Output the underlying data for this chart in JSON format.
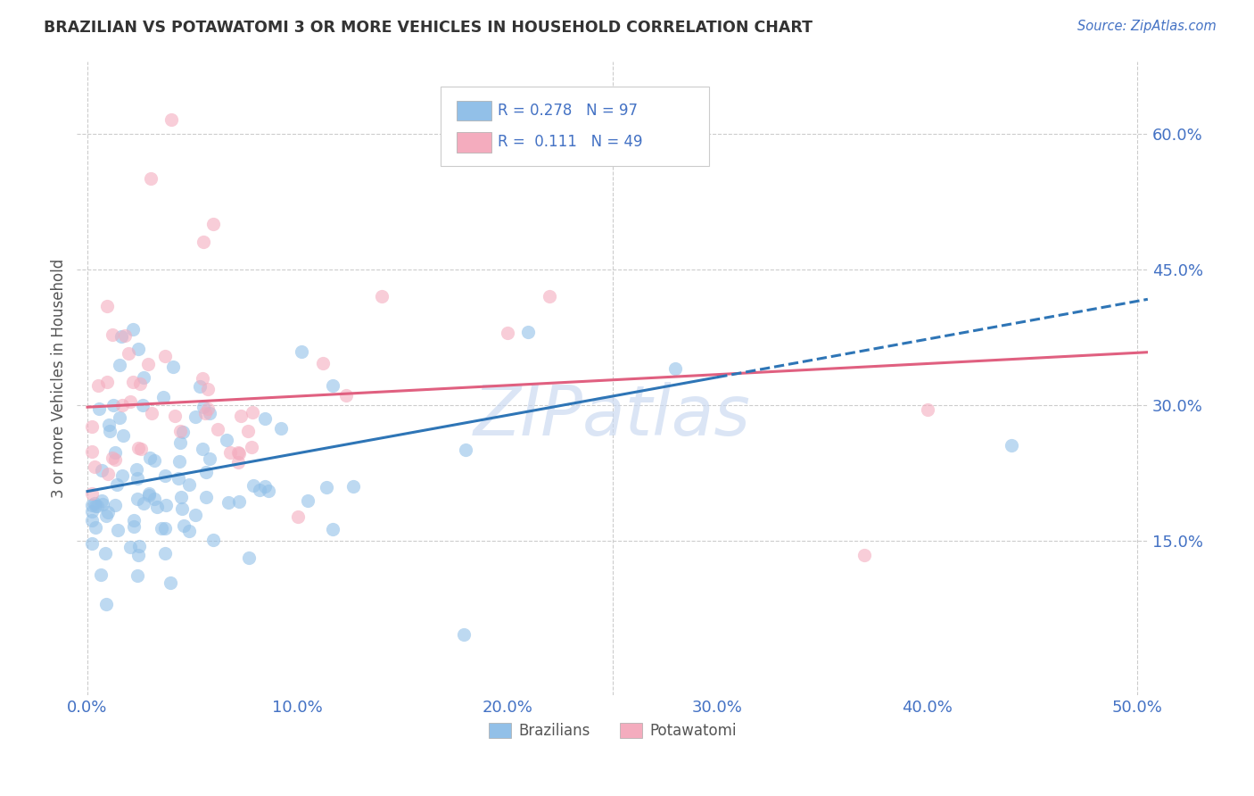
{
  "title": "BRAZILIAN VS POTAWATOMI 3 OR MORE VEHICLES IN HOUSEHOLD CORRELATION CHART",
  "source": "Source: ZipAtlas.com",
  "ylabel": "3 or more Vehicles in Household",
  "xlim": [
    -0.005,
    0.505
  ],
  "ylim": [
    -0.02,
    0.68
  ],
  "xtick_vals": [
    0.0,
    0.1,
    0.2,
    0.3,
    0.4,
    0.5
  ],
  "xtick_labels": [
    "0.0%",
    "10.0%",
    "20.0%",
    "30.0%",
    "40.0%",
    "50.0%"
  ],
  "ytick_vals": [
    0.15,
    0.3,
    0.45,
    0.6
  ],
  "ytick_labels": [
    "15.0%",
    "30.0%",
    "45.0%",
    "60.0%"
  ],
  "legend_labels": [
    "Brazilians",
    "Potawatomi"
  ],
  "brazil_color": "#92C0E8",
  "potawatomi_color": "#F4ACBE",
  "brazil_line_color": "#2E75B6",
  "potawatomi_line_color": "#E06080",
  "brazil_R": 0.278,
  "brazil_N": 97,
  "potawatomi_R": 0.111,
  "potawatomi_N": 49,
  "watermark": "ZIPatlas",
  "grid_color": "#CCCCCC",
  "tick_color": "#4472C4",
  "background_color": "#FFFFFF",
  "brazil_intercept": 0.205,
  "brazil_slope": 0.42,
  "potawatomi_intercept": 0.298,
  "potawatomi_slope": 0.12
}
